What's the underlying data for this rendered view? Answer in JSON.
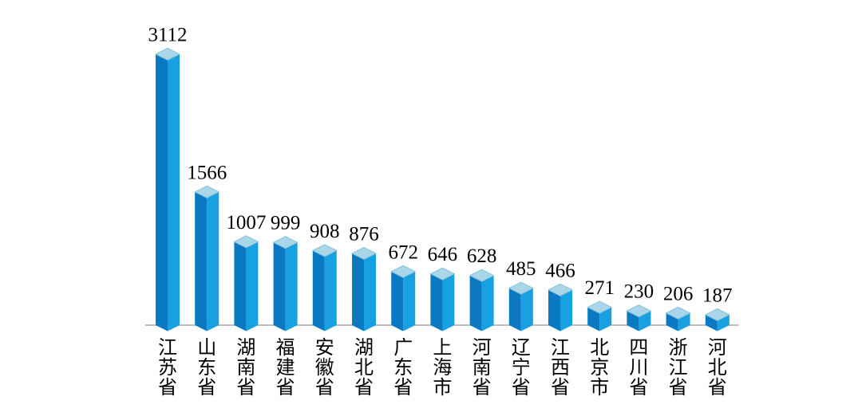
{
  "chart_data": {
    "type": "bar",
    "bar_style": "3d-cuboid-column",
    "categories": [
      "江苏省",
      "山东省",
      "湖南省",
      "福建省",
      "安徽省",
      "湖北省",
      "广东省",
      "上海市",
      "河南省",
      "辽宁省",
      "江西省",
      "北京市",
      "四川省",
      "浙江省",
      "河北省"
    ],
    "values": [
      3112,
      1566,
      1007,
      999,
      908,
      876,
      672,
      646,
      628,
      485,
      466,
      271,
      230,
      206,
      187
    ],
    "data_labels_shown": true,
    "layout": {
      "grid": false,
      "legend": false,
      "y_axis_shown": false,
      "x_axis_line_shown": true,
      "category_label_orientation": "vertical",
      "sort_order": "descending",
      "baseline": 0
    },
    "colors": {
      "bar_face_left": "#0b79c2",
      "bar_face_right": "#17a0e2",
      "bar_top": "#a9d6e8",
      "bar_top_edge": "#85c2d9",
      "axis_line": "#a8a8a8",
      "label_text": "#000000",
      "background": "#ffffff"
    }
  }
}
